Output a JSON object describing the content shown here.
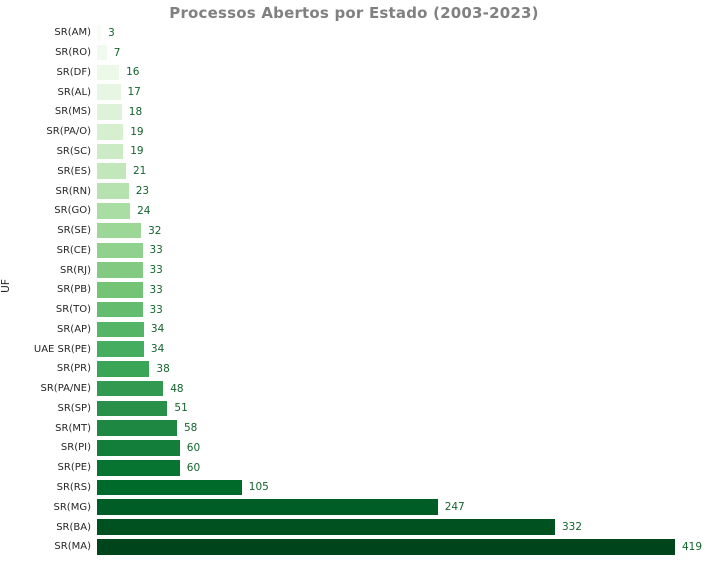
{
  "title_color": "#808080",
  "tick_label_color": "#262626",
  "value_label_color": "#14632d",
  "background_color": "#ffffff",
  "chart_data": {
    "type": "bar",
    "orientation": "horizontal",
    "title": "Processos Abertos por Estado (2003-2023)",
    "xlabel": "",
    "ylabel": "UF",
    "xlim": [
      0,
      440
    ],
    "grid": false,
    "legend": "none",
    "colormap": "Greens",
    "categories": [
      "SR(AM)",
      "SR(RO)",
      "SR(DF)",
      "SR(AL)",
      "SR(MS)",
      "SR(PA/O)",
      "SR(SC)",
      "SR(ES)",
      "SR(RN)",
      "SR(GO)",
      "SR(SE)",
      "SR(CE)",
      "SR(RJ)",
      "SR(PB)",
      "SR(TO)",
      "SR(AP)",
      "UAE SR(PE)",
      "SR(PR)",
      "SR(PA/NE)",
      "SR(SP)",
      "SR(MT)",
      "SR(PI)",
      "SR(PE)",
      "SR(RS)",
      "SR(MG)",
      "SR(BA)",
      "SR(MA)"
    ],
    "values": [
      3,
      7,
      16,
      17,
      18,
      19,
      19,
      21,
      23,
      24,
      32,
      33,
      33,
      33,
      33,
      34,
      34,
      38,
      48,
      51,
      58,
      60,
      60,
      105,
      247,
      332,
      419
    ],
    "bar_colors": [
      "#f7fcf5",
      "#f1faee",
      "#ecf8e8",
      "#e6f6e3",
      "#def2d9",
      "#d5efcf",
      "#cbebc5",
      "#c1e7ba",
      "#b6e2af",
      "#aadda4",
      "#9dd798",
      "#90d18d",
      "#82ca81",
      "#74c476",
      "#64bc6e",
      "#55b567",
      "#45ad5f",
      "#3aa457",
      "#319a50",
      "#289049",
      "#1e8741",
      "#137d3a",
      "#087432",
      "#006a2b",
      "#005d25",
      "#005120",
      "#00441b"
    ]
  }
}
